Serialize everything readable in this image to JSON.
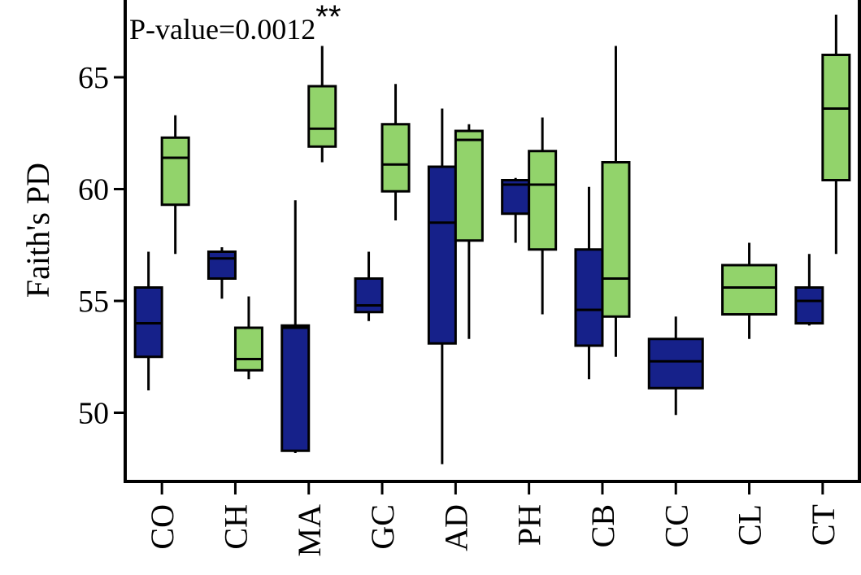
{
  "chart_data": {
    "type": "box",
    "annotation": "P-value=0.0012",
    "annotation_mark": "**",
    "ylabel": "Faith's PD",
    "xlabel": "",
    "ylim": [
      47.0,
      68.0
    ],
    "yticks": [
      50,
      55,
      60,
      65
    ],
    "grid": false,
    "legend": "none",
    "categories": [
      "CO",
      "CH",
      "MA",
      "GC",
      "AD",
      "PH",
      "CB",
      "CC",
      "CL",
      "CT"
    ],
    "colors": {
      "blue": "#16218A",
      "green": "#92D36B"
    },
    "series": [
      {
        "color_key": "blue",
        "boxes": [
          {
            "category": "CO",
            "min": 51.0,
            "q1": 52.5,
            "median": 54.0,
            "q3": 55.6,
            "max": 57.2
          },
          {
            "category": "CH",
            "min": 55.1,
            "q1": 56.0,
            "median": 56.9,
            "q3": 57.2,
            "max": 57.4
          },
          {
            "category": "MA",
            "min": 48.2,
            "q1": 48.3,
            "median": 53.8,
            "q3": 53.9,
            "max": 59.5
          },
          {
            "category": "GC",
            "min": 54.1,
            "q1": 54.5,
            "median": 54.8,
            "q3": 56.0,
            "max": 57.2
          },
          {
            "category": "AD",
            "min": 47.7,
            "q1": 53.1,
            "median": 58.5,
            "q3": 61.0,
            "max": 63.6
          },
          {
            "category": "PH",
            "min": 57.6,
            "q1": 58.9,
            "median": 60.2,
            "q3": 60.4,
            "max": 60.5
          },
          {
            "category": "CB",
            "min": 51.5,
            "q1": 53.0,
            "median": 54.6,
            "q3": 57.3,
            "max": 60.1
          },
          {
            "category": "CC",
            "min": 49.9,
            "q1": 51.1,
            "median": 52.3,
            "q3": 53.3,
            "max": 54.3
          },
          {
            "category": "CT",
            "min": 53.9,
            "q1": 54.0,
            "median": 55.0,
            "q3": 55.6,
            "max": 57.1
          }
        ]
      },
      {
        "color_key": "green",
        "boxes": [
          {
            "category": "CO",
            "min": 57.1,
            "q1": 59.3,
            "median": 61.4,
            "q3": 62.3,
            "max": 63.3
          },
          {
            "category": "CH",
            "min": 51.5,
            "q1": 51.9,
            "median": 52.4,
            "q3": 53.8,
            "max": 55.2
          },
          {
            "category": "MA",
            "min": 61.2,
            "q1": 61.9,
            "median": 62.7,
            "q3": 64.6,
            "max": 66.4
          },
          {
            "category": "GC",
            "min": 58.6,
            "q1": 59.9,
            "median": 61.1,
            "q3": 62.9,
            "max": 64.7
          },
          {
            "category": "AD",
            "min": 53.3,
            "q1": 57.7,
            "median": 62.2,
            "q3": 62.6,
            "max": 62.9
          },
          {
            "category": "PH",
            "min": 54.4,
            "q1": 57.3,
            "median": 60.2,
            "q3": 61.7,
            "max": 63.2
          },
          {
            "category": "CB",
            "min": 52.5,
            "q1": 54.3,
            "median": 56.0,
            "q3": 61.2,
            "max": 66.4
          },
          {
            "category": "CL",
            "min": 53.3,
            "q1": 54.4,
            "median": 55.6,
            "q3": 56.6,
            "max": 57.6
          },
          {
            "category": "CT",
            "min": 57.1,
            "q1": 60.4,
            "median": 63.6,
            "q3": 66.0,
            "max": 67.8
          }
        ]
      }
    ]
  }
}
